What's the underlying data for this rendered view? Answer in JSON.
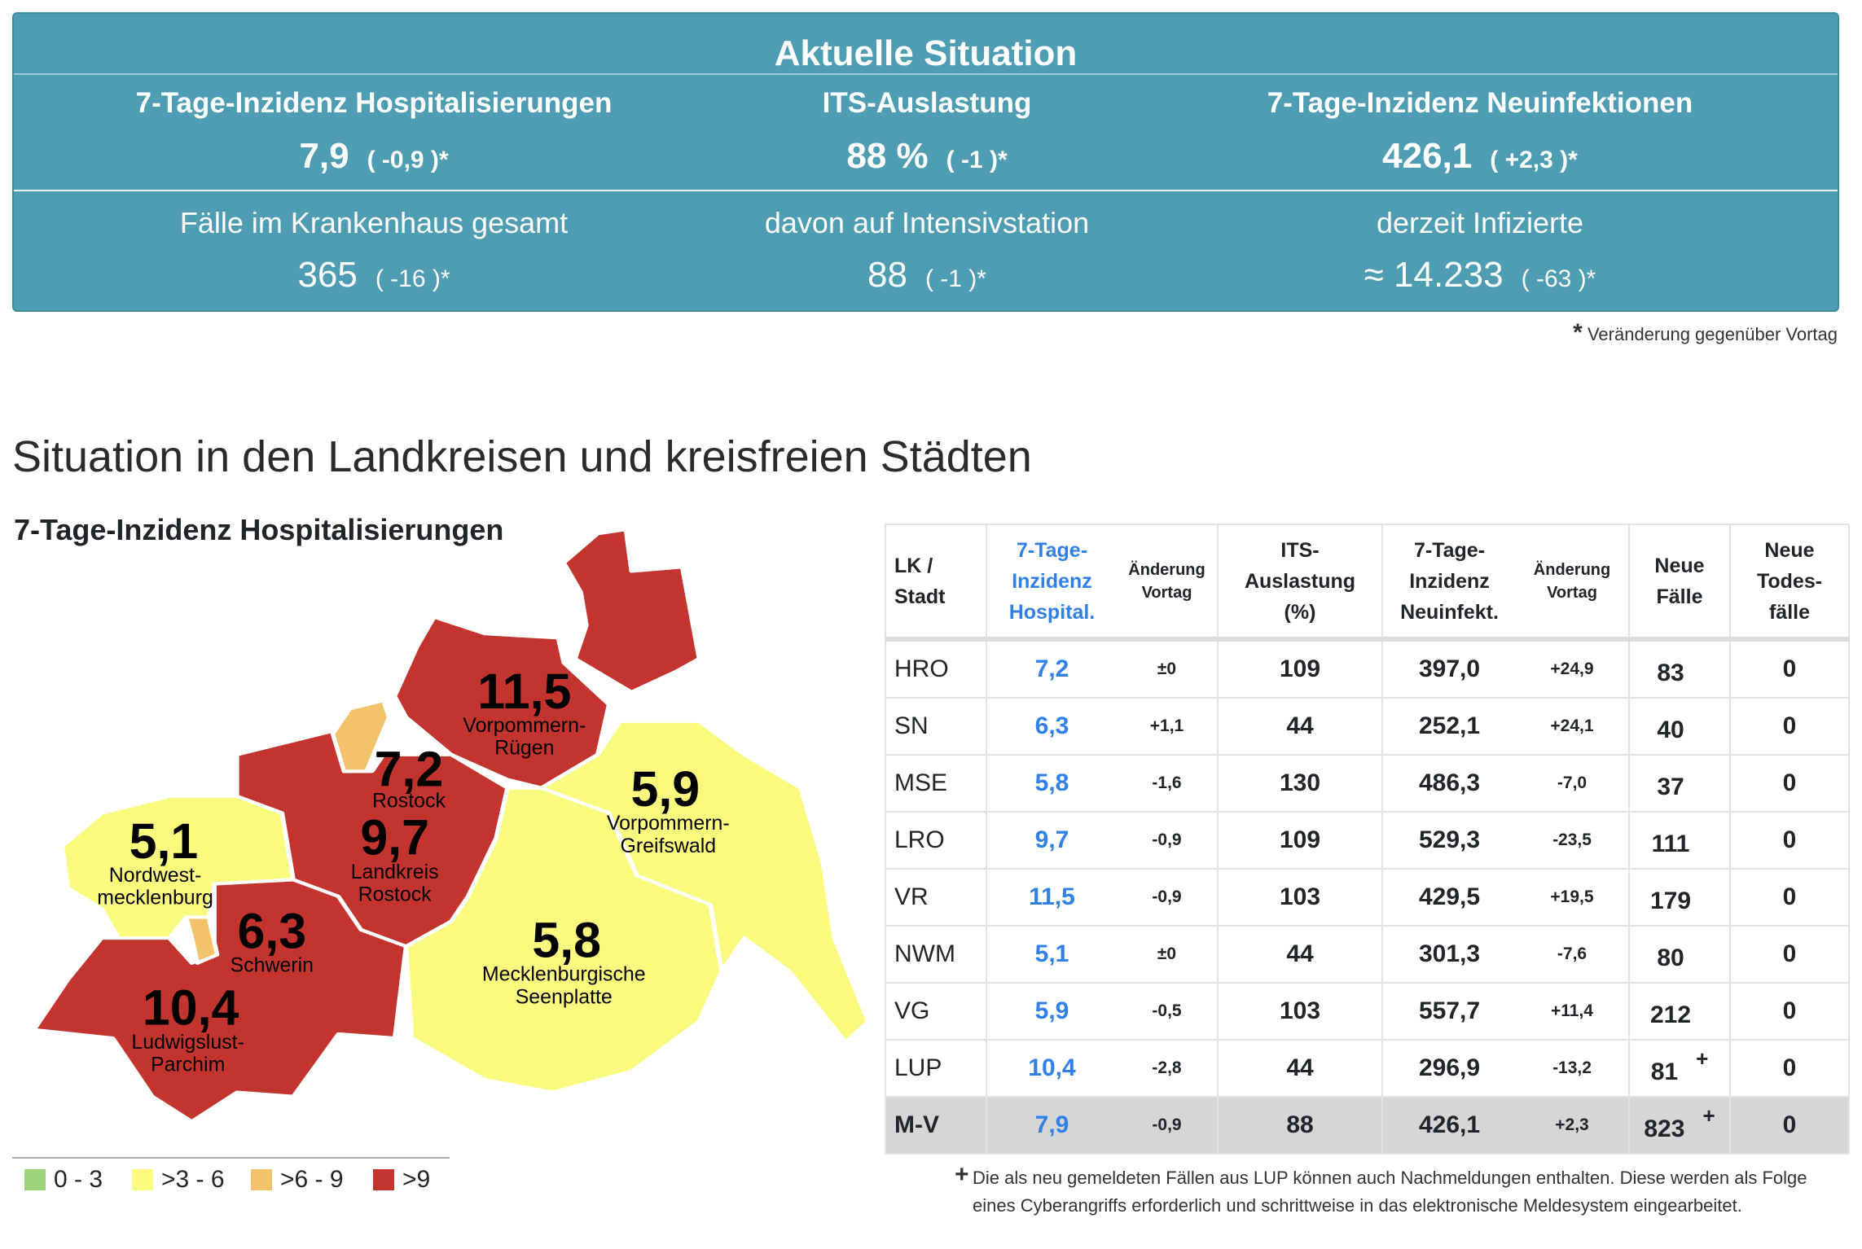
{
  "banner": {
    "title": "Aktuelle Situation",
    "top": [
      {
        "label": "7-Tage-Inzidenz Hospitalisierungen",
        "value": "7,9",
        "change": "( -0,9 )*"
      },
      {
        "label": "ITS-Auslastung",
        "value": "88 %",
        "change": "( -1 )*"
      },
      {
        "label": "7-Tage-Inzidenz Neuinfektionen",
        "value": "426,1",
        "change": "( +2,3 )*"
      }
    ],
    "bottom": [
      {
        "label": "Fälle im Krankenhaus gesamt",
        "value": "365",
        "change": "( -16 )*"
      },
      {
        "label": "davon auf Intensivstation",
        "value": "88",
        "change": "( -1 )*"
      },
      {
        "label": "derzeit Infizierte",
        "value": "≈ 14.233",
        "change": "( -63 )*"
      }
    ]
  },
  "note": {
    "star": "*",
    "text": "Veränderung gegenüber Vortag"
  },
  "section_title": "Situation in den Landkreisen und kreisfreien Städten",
  "map": {
    "title": "7-Tage-Inzidenz Hospitalisierungen",
    "colors": {
      "green": "#9bd27a",
      "yellow": "#fafa7f",
      "orange": "#f2c36b",
      "red": "#c4342e"
    },
    "regions": [
      {
        "id": "VR",
        "value": "11,5",
        "name1": "Vorpommern-",
        "name2": "Rügen"
      },
      {
        "id": "HRO",
        "value": "7,2",
        "name1": "Rostock",
        "name2": ""
      },
      {
        "id": "LRO",
        "value": "9,7",
        "name1": "Landkreis",
        "name2": "Rostock"
      },
      {
        "id": "NWM",
        "value": "5,1",
        "name1": "Nordwest-",
        "name2": "mecklenburg"
      },
      {
        "id": "SN",
        "value": "6,3",
        "name1": "Schwerin",
        "name2": ""
      },
      {
        "id": "LUP",
        "value": "10,4",
        "name1": "Ludwigslust-",
        "name2": "Parchim"
      },
      {
        "id": "MSE",
        "value": "5,8",
        "name1": "Mecklenburgische",
        "name2": "Seenplatte"
      },
      {
        "id": "VG",
        "value": "5,9",
        "name1": "Vorpommern-",
        "name2": "Greifswald"
      }
    ],
    "legend": [
      {
        "label": "0 - 3",
        "color": "#9bd27a"
      },
      {
        "label": ">3 - 6",
        "color": "#fafa7f"
      },
      {
        "label": ">6 - 9",
        "color": "#f2c36b"
      },
      {
        "label": ">9",
        "color": "#c4342e"
      }
    ]
  },
  "table": {
    "headers": {
      "lk": [
        "LK /",
        "Stadt"
      ],
      "hosp": [
        "7-Tage-",
        "Inzidenz",
        "Hospital."
      ],
      "hosp_chg": [
        "Änderung",
        "Vortag"
      ],
      "its": [
        "ITS-",
        "Auslastung",
        "(%)"
      ],
      "inf": [
        "7-Tage-",
        "Inzidenz",
        "Neuinfekt."
      ],
      "inf_chg": [
        "Änderung",
        "Vortag"
      ],
      "cases": [
        "Neue",
        "Fälle"
      ],
      "deaths": [
        "Neue",
        "Todes-",
        "fälle"
      ]
    },
    "rows": [
      {
        "lk": "HRO",
        "hosp": "7,2",
        "hosp_chg": "±0",
        "its": "109",
        "inf": "397,0",
        "inf_chg": "+24,9",
        "cases": "83",
        "mark": "",
        "deaths": "0"
      },
      {
        "lk": "SN",
        "hosp": "6,3",
        "hosp_chg": "+1,1",
        "its": "44",
        "inf": "252,1",
        "inf_chg": "+24,1",
        "cases": "40",
        "mark": "",
        "deaths": "0"
      },
      {
        "lk": "MSE",
        "hosp": "5,8",
        "hosp_chg": "-1,6",
        "its": "130",
        "inf": "486,3",
        "inf_chg": "-7,0",
        "cases": "37",
        "mark": "",
        "deaths": "0"
      },
      {
        "lk": "LRO",
        "hosp": "9,7",
        "hosp_chg": "-0,9",
        "its": "109",
        "inf": "529,3",
        "inf_chg": "-23,5",
        "cases": "111",
        "mark": "",
        "deaths": "0"
      },
      {
        "lk": "VR",
        "hosp": "11,5",
        "hosp_chg": "-0,9",
        "its": "103",
        "inf": "429,5",
        "inf_chg": "+19,5",
        "cases": "179",
        "mark": "",
        "deaths": "0"
      },
      {
        "lk": "NWM",
        "hosp": "5,1",
        "hosp_chg": "±0",
        "its": "44",
        "inf": "301,3",
        "inf_chg": "-7,6",
        "cases": "80",
        "mark": "",
        "deaths": "0"
      },
      {
        "lk": "VG",
        "hosp": "5,9",
        "hosp_chg": "-0,5",
        "its": "103",
        "inf": "557,7",
        "inf_chg": "+11,4",
        "cases": "212",
        "mark": "",
        "deaths": "0"
      },
      {
        "lk": "LUP",
        "hosp": "10,4",
        "hosp_chg": "-2,8",
        "its": "44",
        "inf": "296,9",
        "inf_chg": "-13,2",
        "cases": "81",
        "mark": "+",
        "deaths": "0"
      }
    ],
    "total": {
      "lk": "M-V",
      "hosp": "7,9",
      "hosp_chg": "-0,9",
      "its": "88",
      "inf": "426,1",
      "inf_chg": "+2,3",
      "cases": "823",
      "mark": "+",
      "deaths": "0"
    }
  },
  "footnote": {
    "mark": "+",
    "text": "Die als neu gemeldeten Fällen aus LUP können auch Nachmeldungen enthalten. Diese werden als Folge eines Cyberangriffs erforderlich und schrittweise in das elektronische Meldesystem eingearbeitet."
  }
}
